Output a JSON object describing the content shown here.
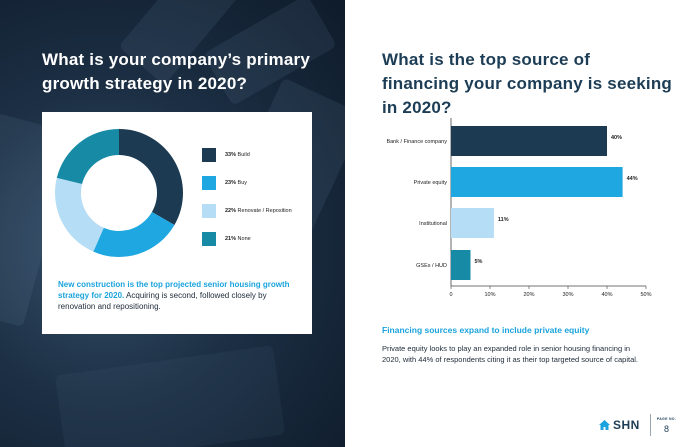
{
  "left": {
    "title": "What is your company’s primary growth strategy in 2020?",
    "card": {
      "highlight": "New construction is the top projected senior housing growth strategy for 2020.",
      "body": " Acquiring is second, followed closely by renovation and repositioning."
    }
  },
  "legend": [
    {
      "pct": "33%",
      "label": "Build",
      "color": "#1c3b52"
    },
    {
      "pct": "23%",
      "label": "Buy",
      "color": "#1ea7e1"
    },
    {
      "pct": "22%",
      "label": "Renovate / Reposition",
      "color": "#b5ddf5"
    },
    {
      "pct": "21%",
      "label": "None",
      "color": "#178aa6"
    }
  ],
  "right": {
    "title": "What is the top source of financing your company is seeking in 2020?",
    "subheading": "Financing sources expand to include private equity",
    "body": "Private equity looks to play an expanded role in senior housing financing in 2020, with 44% of respondents citing it as their top targeted source of capital."
  },
  "footer": {
    "logo_text": "SHN",
    "page_label": "PAGE NO.",
    "page_number": "8"
  },
  "chart_data": [
    {
      "type": "pie",
      "title": "What is your company’s primary growth strategy in 2020?",
      "categories": [
        "Build",
        "Buy",
        "Renovate / Reposition",
        "None"
      ],
      "values": [
        33,
        23,
        22,
        21
      ],
      "colors": [
        "#1c3b52",
        "#1ea7e1",
        "#b5ddf5",
        "#178aa6"
      ],
      "start_angle_deg": 0
    },
    {
      "type": "bar",
      "orientation": "horizontal",
      "title": "What is the top source of financing your company is seeking in 2020?",
      "categories": [
        "Bank / Finance company",
        "Private equity",
        "Institutional",
        "GSEs / HUD"
      ],
      "values": [
        40,
        44,
        11,
        5
      ],
      "value_labels": [
        "40%",
        "44%",
        "11%",
        "5%"
      ],
      "colors": [
        "#1c3b52",
        "#1ea7e1",
        "#b5ddf5",
        "#178aa6"
      ],
      "xlim": [
        0,
        50
      ],
      "xticks": [
        0,
        10,
        20,
        30,
        40,
        50
      ],
      "xtick_labels": [
        "0",
        "10%",
        "20%",
        "30%",
        "40%",
        "50%"
      ]
    }
  ]
}
